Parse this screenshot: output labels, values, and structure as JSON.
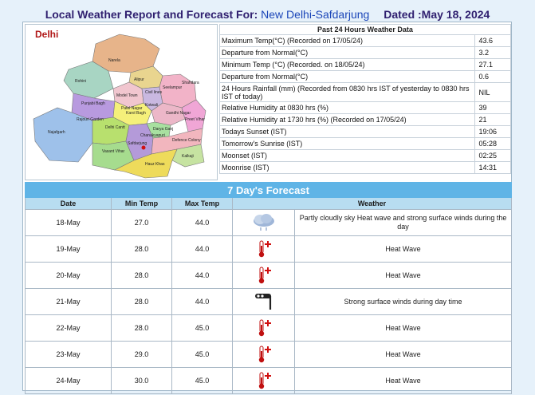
{
  "header": {
    "title": "Local Weather Report and Forecast For:",
    "station": "New Delhi-Safdarjung",
    "dated": "Dated :May 18, 2024"
  },
  "map": {
    "title": "Delhi",
    "labels": [
      "Narela",
      "Rohini",
      "Alipur",
      "Civil lines",
      "Model Town",
      "Seelampur",
      "Shahdara",
      "Punjabi Bagh",
      "Patel Nagar",
      "Karol Bagh",
      "Kotwali",
      "Gandhi Nagar",
      "Rajouri Garden",
      "Delhi Cantt",
      "Darya Ganj",
      "Preet Vihar",
      "Najafgarh",
      "Vasant Vihar",
      "Chanakyapuri",
      "Defence Colony",
      "Kalkaji",
      "Safdarjung",
      "Hauz Khas"
    ]
  },
  "past24": {
    "heading": "Past 24 Hours Weather Data",
    "rows": [
      {
        "label": "Maximum Temp(°C) (Recorded on 17/05/24)",
        "value": "43.6"
      },
      {
        "label": "Departure from Normal(°C)",
        "value": "3.2"
      },
      {
        "label": "Minimum Temp (°C) (Recorded. on 18/05/24)",
        "value": "27.1"
      },
      {
        "label": "Departure from Normal(°C)",
        "value": "0.6"
      },
      {
        "label": "24 Hours Rainfall (mm) (Recorded from 0830 hrs IST of yesterday to 0830 hrs IST of today)",
        "value": "NIL"
      },
      {
        "label": "Relative Humidity at 0830 hrs (%)",
        "value": "39"
      },
      {
        "label": "Relative Humidity at 1730 hrs (%) (Recorded on 17/05/24)",
        "value": "21"
      },
      {
        "label": "Todays Sunset (IST)",
        "value": "19:06"
      },
      {
        "label": "Tomorrow's Sunrise (IST)",
        "value": "05:28"
      },
      {
        "label": "Moonset (IST)",
        "value": "02:25"
      },
      {
        "label": "Moonrise (IST)",
        "value": "14:31"
      }
    ]
  },
  "forecast": {
    "title": "7 Day's Forecast",
    "headers": {
      "date": "Date",
      "min": "Min Temp",
      "max": "Max Temp",
      "weather": "Weather"
    },
    "rows": [
      {
        "date": "18-May",
        "min": "27.0",
        "max": "44.0",
        "icon": "cloud-heatwave-icon",
        "weather": "Partly cloudly sky Heat wave and strong surface winds during the day"
      },
      {
        "date": "19-May",
        "min": "28.0",
        "max": "44.0",
        "icon": "thermometer-hot-icon",
        "weather": "Heat Wave"
      },
      {
        "date": "20-May",
        "min": "28.0",
        "max": "44.0",
        "icon": "thermometer-hot-icon",
        "weather": "Heat Wave"
      },
      {
        "date": "21-May",
        "min": "28.0",
        "max": "44.0",
        "icon": "wind-icon",
        "weather": "Strong surface winds during day time"
      },
      {
        "date": "22-May",
        "min": "28.0",
        "max": "45.0",
        "icon": "thermometer-hot-icon",
        "weather": "Heat Wave"
      },
      {
        "date": "23-May",
        "min": "29.0",
        "max": "45.0",
        "icon": "thermometer-hot-icon",
        "weather": "Heat Wave"
      },
      {
        "date": "24-May",
        "min": "30.0",
        "max": "45.0",
        "icon": "thermometer-hot-icon",
        "weather": "Heat Wave"
      }
    ]
  }
}
